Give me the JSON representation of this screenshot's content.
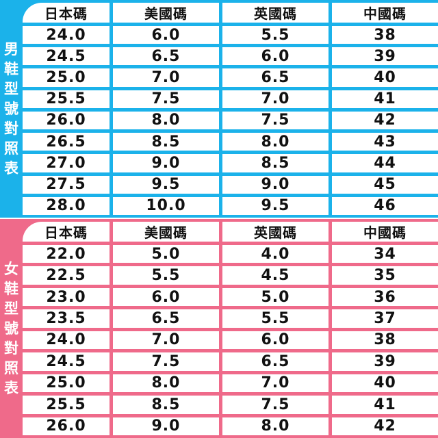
{
  "colors": {
    "men": "#1bb2ea",
    "women": "#ef6a8a"
  },
  "men": {
    "label": [
      "男",
      "鞋",
      "型",
      "號",
      "對",
      "照",
      "表"
    ],
    "headers": [
      "日本碼",
      "美國碼",
      "英國碼",
      "中國碼"
    ],
    "rows": [
      [
        "24.0",
        "6.0",
        "5.5",
        "38"
      ],
      [
        "24.5",
        "6.5",
        "6.0",
        "39"
      ],
      [
        "25.0",
        "7.0",
        "6.5",
        "40"
      ],
      [
        "25.5",
        "7.5",
        "7.0",
        "41"
      ],
      [
        "26.0",
        "8.0",
        "7.5",
        "42"
      ],
      [
        "26.5",
        "8.5",
        "8.0",
        "43"
      ],
      [
        "27.0",
        "9.0",
        "8.5",
        "44"
      ],
      [
        "27.5",
        "9.5",
        "9.0",
        "45"
      ],
      [
        "28.0",
        "10.0",
        "9.5",
        "46"
      ]
    ]
  },
  "women": {
    "label": [
      "女",
      "鞋",
      "型",
      "號",
      "對",
      "照",
      "表"
    ],
    "headers": [
      "日本碼",
      "美國碼",
      "英國碼",
      "中國碼"
    ],
    "rows": [
      [
        "22.0",
        "5.0",
        "4.0",
        "34"
      ],
      [
        "22.5",
        "5.5",
        "4.5",
        "35"
      ],
      [
        "23.0",
        "6.0",
        "5.0",
        "36"
      ],
      [
        "23.5",
        "6.5",
        "5.5",
        "37"
      ],
      [
        "24.0",
        "7.0",
        "6.0",
        "38"
      ],
      [
        "24.5",
        "7.5",
        "6.5",
        "39"
      ],
      [
        "25.0",
        "8.0",
        "7.0",
        "40"
      ],
      [
        "25.5",
        "8.5",
        "7.5",
        "41"
      ],
      [
        "26.0",
        "9.0",
        "8.0",
        "42"
      ]
    ]
  }
}
